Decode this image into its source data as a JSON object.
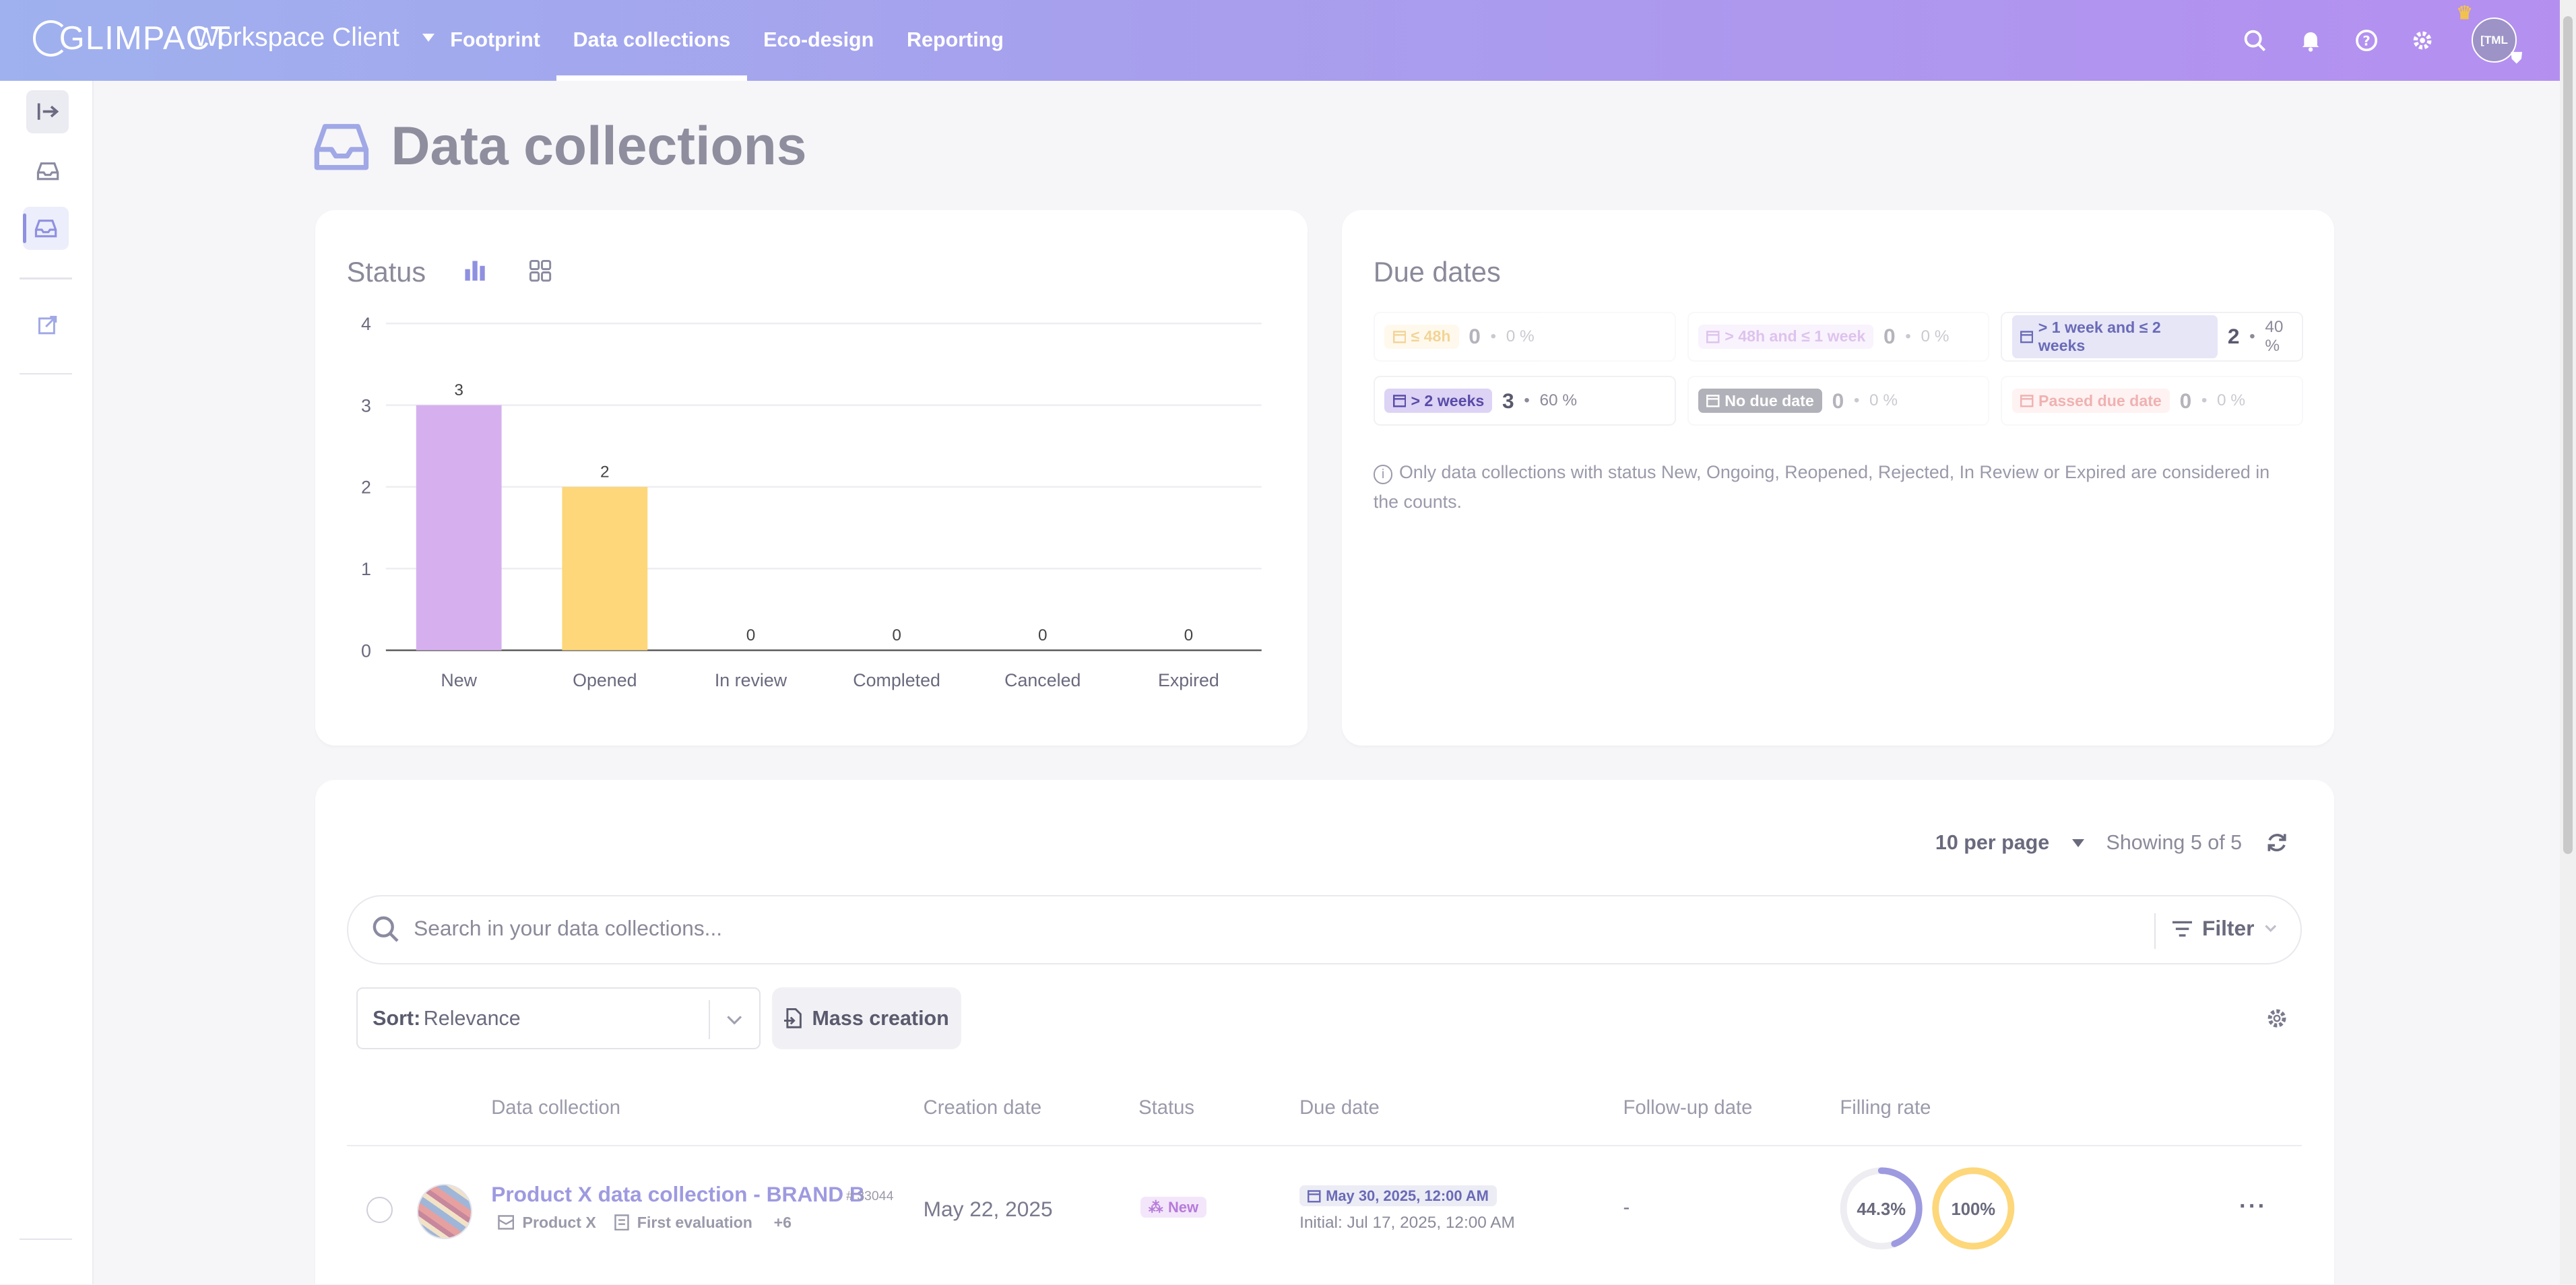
{
  "app": {
    "logo": "GLIMPACT",
    "workspace": "Workspace Client",
    "nav": [
      "Footprint",
      "Data collections",
      "Eco-design",
      "Reporting"
    ],
    "active_nav": "Data collections",
    "avatar_initials": "[TML"
  },
  "page": {
    "title": "Data collections"
  },
  "status_card": {
    "title": "Status",
    "chart_data": {
      "type": "bar",
      "categories": [
        "New",
        "Opened",
        "In review",
        "Completed",
        "Canceled",
        "Expired"
      ],
      "values": [
        3,
        2,
        0,
        0,
        0,
        0
      ],
      "colors": [
        "#d6b0ee",
        "#fdd77a",
        "#dddddd",
        "#dddddd",
        "#dddddd",
        "#dddddd"
      ],
      "ylim": [
        0,
        4
      ],
      "yticks": [
        0,
        1,
        2,
        3,
        4
      ],
      "title": "",
      "xlabel": "",
      "ylabel": "",
      "grid": true
    }
  },
  "due_card": {
    "title": "Due dates",
    "items": [
      {
        "label": "≤ 48h",
        "count": "0",
        "pct": "0 %",
        "bg": "#fff3d9",
        "fg": "#e3a21a",
        "faded": true
      },
      {
        "label": "> 48h and ≤ 1 week",
        "count": "0",
        "pct": "0 %",
        "bg": "#f3e6fb",
        "fg": "#b67bd9",
        "faded": true
      },
      {
        "label": "> 1 week and ≤ 2 weeks",
        "count": "2",
        "pct": "40 %",
        "bg": "#e6e6f7",
        "fg": "#6a6ab8",
        "faded": false
      },
      {
        "label": "> 2 weeks",
        "count": "3",
        "pct": "60 %",
        "bg": "#dcd3f5",
        "fg": "#5a4ba8",
        "faded": false
      },
      {
        "label": "No due date",
        "count": "0",
        "pct": "0 %",
        "bg": "#555566",
        "fg": "#ffffff",
        "faded": true
      },
      {
        "label": "Passed due date",
        "count": "0",
        "pct": "0 %",
        "bg": "#fde3e3",
        "fg": "#e05555",
        "faded": true
      }
    ],
    "note": "Only data collections with status New, Ongoing, Reopened, Rejected, In Review or Expired are considered in the counts."
  },
  "list": {
    "per_page": "10 per page",
    "showing": "Showing 5 of 5",
    "search_placeholder": "Search in your data collections...",
    "filter_label": "Filter",
    "sort_label": "Sort:",
    "sort_value": "Relevance",
    "mass_creation": "Mass creation",
    "columns": [
      "Data collection",
      "Creation date",
      "Status",
      "Due date",
      "Follow-up date",
      "Filling rate"
    ],
    "rows": [
      {
        "name": "Product X data collection - BRAND B",
        "id": "# 33044",
        "product": "Product X",
        "stage": "First evaluation",
        "more": "+6",
        "created": "May 22, 2025",
        "status": "New",
        "due": "May 30, 2025, 12:00 AM",
        "initial": "Initial: Jul 17, 2025, 12:00 AM",
        "followup": "-",
        "rate1": "44.3%",
        "rate1_value": 0.443,
        "rate2": "100%",
        "rate2_value": 1.0
      }
    ]
  }
}
